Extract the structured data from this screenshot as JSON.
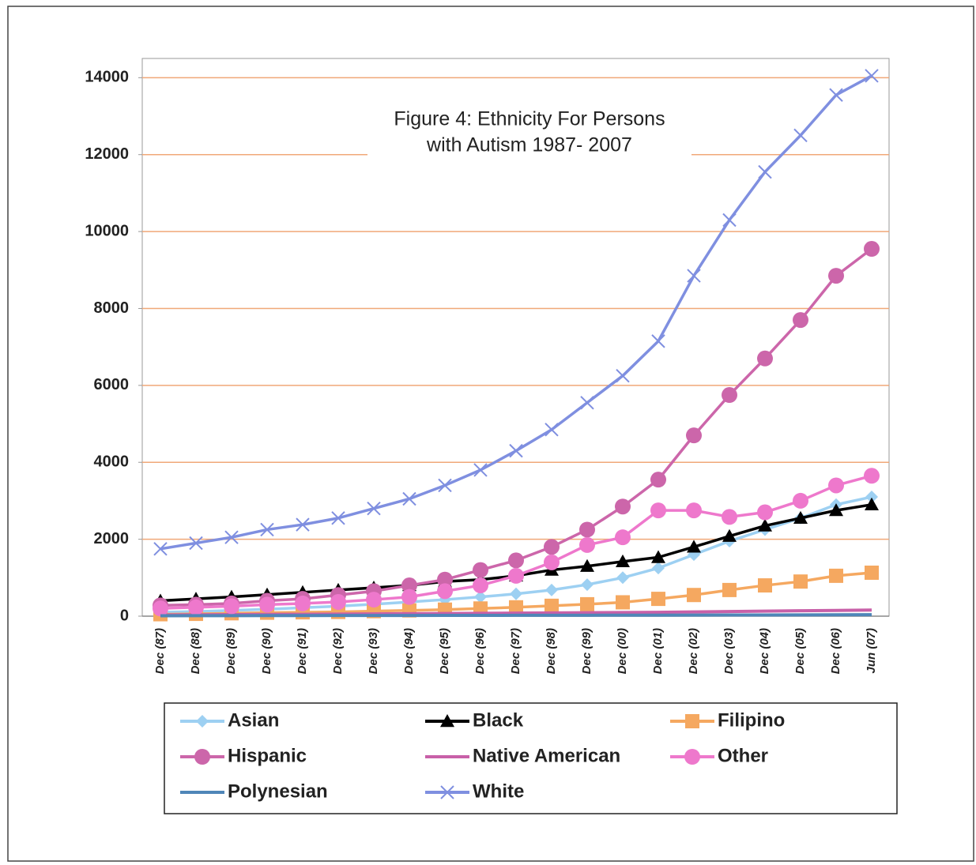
{
  "chart_data": {
    "type": "line",
    "title": [
      "Figure 4: Ethnicity For Persons",
      "with Autism 1987- 2007"
    ],
    "categories": [
      "Dec (87)",
      "Dec (88)",
      "Dec (89)",
      "Dec (90)",
      "Dec (91)",
      "Dec (92)",
      "Dec (93)",
      "Dec (94)",
      "Dec (95)",
      "Dec (96)",
      "Dec (97)",
      "Dec (98)",
      "Dec (99)",
      "Dec (00)",
      "Dec (01)",
      "Dec (02)",
      "Dec (03)",
      "Dec (04)",
      "Dec (05)",
      "Dec (06)",
      "Jun (07)"
    ],
    "ylim": [
      0,
      14500
    ],
    "yticks": [
      0,
      2000,
      4000,
      6000,
      8000,
      10000,
      12000,
      14000
    ],
    "grid": true,
    "grid_color": "#f0a878",
    "legend": "bottom",
    "series": [
      {
        "name": "Asian",
        "color": "#9dd0f2",
        "marker": "diamond",
        "values": [
          100,
          120,
          150,
          180,
          220,
          260,
          310,
          370,
          430,
          500,
          580,
          680,
          820,
          1000,
          1250,
          1600,
          1950,
          2250,
          2550,
          2900,
          3100
        ]
      },
      {
        "name": "Black",
        "color": "#000000",
        "marker": "triangle",
        "values": [
          400,
          450,
          500,
          560,
          620,
          680,
          740,
          800,
          900,
          950,
          1050,
          1200,
          1300,
          1420,
          1530,
          1800,
          2080,
          2350,
          2550,
          2750,
          2900
        ]
      },
      {
        "name": "Filipino",
        "color": "#f5a860",
        "marker": "square",
        "values": [
          50,
          60,
          75,
          90,
          100,
          110,
          130,
          150,
          170,
          200,
          230,
          270,
          310,
          360,
          450,
          550,
          680,
          800,
          900,
          1050,
          1130
        ]
      },
      {
        "name": "Hispanic",
        "color": "#cc66aa",
        "marker": "circle",
        "values": [
          280,
          300,
          330,
          400,
          450,
          550,
          650,
          800,
          950,
          1200,
          1450,
          1800,
          2250,
          2850,
          3550,
          4700,
          5750,
          6700,
          7700,
          8850,
          9550
        ]
      },
      {
        "name": "Native American",
        "color": "#c860a8",
        "marker": "none",
        "values": [
          30,
          35,
          40,
          45,
          50,
          55,
          60,
          65,
          70,
          75,
          80,
          85,
          90,
          95,
          100,
          110,
          120,
          130,
          140,
          150,
          160
        ]
      },
      {
        "name": "Other",
        "color": "#ee78cc",
        "marker": "circle",
        "values": [
          200,
          230,
          260,
          300,
          330,
          370,
          430,
          500,
          650,
          800,
          1050,
          1400,
          1850,
          2050,
          2750,
          2750,
          2580,
          2700,
          3000,
          3400,
          3650
        ]
      },
      {
        "name": "Polynesian",
        "color": "#4f86b8",
        "marker": "none",
        "values": [
          10,
          12,
          14,
          15,
          16,
          17,
          18,
          19,
          20,
          21,
          22,
          23,
          24,
          25,
          26,
          28,
          30,
          32,
          34,
          36,
          38
        ]
      },
      {
        "name": "White",
        "color": "#7f8fe0",
        "marker": "x",
        "values": [
          1750,
          1900,
          2050,
          2250,
          2380,
          2550,
          2800,
          3050,
          3400,
          3800,
          4300,
          4850,
          5550,
          6250,
          7150,
          8850,
          10300,
          11550,
          12500,
          13550,
          14050
        ]
      }
    ]
  }
}
